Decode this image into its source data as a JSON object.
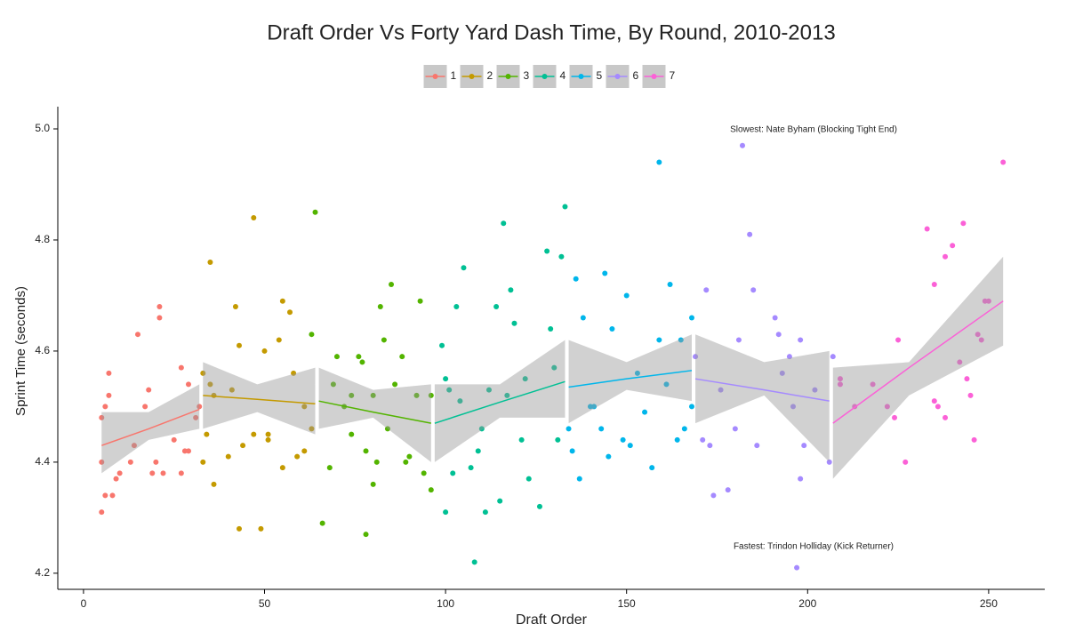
{
  "chart_data": {
    "type": "scatter",
    "title": "Draft Order Vs Forty Yard Dash Time, By Round, 2010-2013",
    "x_label": "Draft Order",
    "y_label": "Sprint Time (seconds)",
    "xlim": [
      -7.1,
      265.5
    ],
    "ylim": [
      4.171,
      5.04
    ],
    "xticks": [
      0,
      50,
      100,
      150,
      200,
      250
    ],
    "yticks": [
      4.2,
      4.4,
      4.6,
      4.8,
      {
        "value": 5,
        "label": "5.0"
      }
    ],
    "grid": false,
    "legend": "top",
    "annotations": [
      "Slowest: Nate Byham (Blocking Tight End)",
      "Fastest: Trindon Holliday (Kick Returner)"
    ],
    "series": [
      {
        "name": "1",
        "color": "#F8766D",
        "x": [
          5,
          5,
          5,
          6,
          6,
          7,
          7,
          8,
          9,
          10,
          13,
          14,
          15,
          17,
          18,
          19,
          20,
          21,
          21,
          22,
          25,
          27,
          27,
          28,
          29,
          29,
          31,
          32
        ],
        "values": [
          4.48,
          4.4,
          4.31,
          4.5,
          4.34,
          4.56,
          4.52,
          4.34,
          4.37,
          4.38,
          4.4,
          4.43,
          4.63,
          4.5,
          4.53,
          4.38,
          4.4,
          4.68,
          4.66,
          4.38,
          4.44,
          4.57,
          4.38,
          4.42,
          4.42,
          4.54,
          4.48,
          4.5
        ],
        "fit": {
          "x": [
            5,
            18,
            32
          ],
          "y": [
            4.43,
            4.46,
            4.495
          ],
          "lower": [
            4.38,
            4.44,
            4.46
          ],
          "upper": [
            4.49,
            4.49,
            4.54
          ]
        }
      },
      {
        "name": "2",
        "color": "#C49A00",
        "x": [
          33,
          33,
          34,
          35,
          35,
          36,
          36,
          40,
          41,
          42,
          43,
          43,
          44,
          47,
          47,
          49,
          50,
          51,
          51,
          54,
          55,
          55,
          57,
          58,
          59,
          61,
          61,
          63
        ],
        "values": [
          4.4,
          4.56,
          4.45,
          4.54,
          4.76,
          4.52,
          4.36,
          4.41,
          4.53,
          4.68,
          4.61,
          4.28,
          4.43,
          4.45,
          4.84,
          4.28,
          4.6,
          4.45,
          4.44,
          4.62,
          4.39,
          4.69,
          4.67,
          4.56,
          4.41,
          4.42,
          4.5,
          4.46
        ],
        "fit": {
          "x": [
            33,
            48,
            64
          ],
          "y": [
            4.52,
            4.513,
            4.505
          ],
          "lower": [
            4.46,
            4.49,
            4.45
          ],
          "upper": [
            4.58,
            4.54,
            4.57
          ]
        }
      },
      {
        "name": "3",
        "color": "#53B400",
        "x": [
          64,
          63,
          66,
          68,
          69,
          70,
          72,
          74,
          74,
          76,
          77,
          78,
          78,
          80,
          80,
          81,
          82,
          83,
          84,
          85,
          86,
          88,
          89,
          90,
          92,
          93,
          94,
          96,
          96
        ],
        "values": [
          4.85,
          4.63,
          4.29,
          4.39,
          4.54,
          4.59,
          4.5,
          4.52,
          4.45,
          4.59,
          4.58,
          4.27,
          4.42,
          4.52,
          4.36,
          4.4,
          4.68,
          4.62,
          4.46,
          4.72,
          4.54,
          4.59,
          4.4,
          4.41,
          4.52,
          4.69,
          4.38,
          4.52,
          4.35
        ],
        "fit": {
          "x": [
            65,
            80,
            96
          ],
          "y": [
            4.51,
            4.49,
            4.47
          ],
          "lower": [
            4.46,
            4.48,
            4.4
          ],
          "upper": [
            4.57,
            4.53,
            4.54
          ]
        }
      },
      {
        "name": "4",
        "color": "#00C094",
        "x": [
          99,
          100,
          100,
          101,
          102,
          103,
          104,
          105,
          107,
          108,
          109,
          110,
          111,
          112,
          114,
          115,
          116,
          117,
          118,
          119,
          121,
          122,
          123,
          126,
          128,
          129,
          130,
          131,
          132,
          133
        ],
        "values": [
          4.61,
          4.31,
          4.55,
          4.53,
          4.38,
          4.68,
          4.51,
          4.75,
          4.39,
          4.22,
          4.42,
          4.46,
          4.31,
          4.53,
          4.68,
          4.33,
          4.83,
          4.52,
          4.71,
          4.65,
          4.44,
          4.55,
          4.37,
          4.32,
          4.78,
          4.64,
          4.57,
          4.44,
          4.77,
          4.86
        ],
        "fit": {
          "x": [
            97,
            115,
            133
          ],
          "y": [
            4.47,
            4.508,
            4.545
          ],
          "lower": [
            4.4,
            4.48,
            4.48
          ],
          "upper": [
            4.54,
            4.54,
            4.62
          ]
        }
      },
      {
        "name": "5",
        "color": "#00B6EB",
        "x": [
          134,
          135,
          136,
          137,
          138,
          140,
          141,
          143,
          144,
          145,
          146,
          149,
          150,
          151,
          153,
          155,
          157,
          159,
          159,
          161,
          162,
          164,
          165,
          166,
          168,
          168
        ],
        "values": [
          4.46,
          4.42,
          4.73,
          4.37,
          4.66,
          4.5,
          4.5,
          4.46,
          4.74,
          4.41,
          4.64,
          4.44,
          4.7,
          4.43,
          4.56,
          4.49,
          4.39,
          4.62,
          4.94,
          4.54,
          4.72,
          4.44,
          4.62,
          4.46,
          4.66,
          4.5
        ],
        "fit": {
          "x": [
            134,
            150,
            168
          ],
          "y": [
            4.535,
            4.55,
            4.565
          ],
          "lower": [
            4.47,
            4.53,
            4.51
          ],
          "upper": [
            4.62,
            4.58,
            4.63
          ]
        }
      },
      {
        "name": "6",
        "color": "#A58AFF",
        "x": [
          169,
          171,
          172,
          173,
          174,
          176,
          178,
          180,
          181,
          182,
          184,
          185,
          186,
          191,
          192,
          193,
          195,
          196,
          198,
          198,
          197,
          199,
          202,
          206,
          207
        ],
        "values": [
          4.59,
          4.44,
          4.71,
          4.43,
          4.34,
          4.53,
          4.35,
          4.46,
          4.62,
          4.97,
          4.81,
          4.71,
          4.43,
          4.66,
          4.63,
          4.56,
          4.59,
          4.5,
          4.37,
          4.62,
          4.21,
          4.43,
          4.53,
          4.4,
          4.59
        ],
        "fit": {
          "x": [
            169,
            188,
            206
          ],
          "y": [
            4.55,
            4.53,
            4.51
          ],
          "lower": [
            4.47,
            4.52,
            4.4
          ],
          "upper": [
            4.63,
            4.58,
            4.6
          ]
        }
      },
      {
        "name": "7",
        "color": "#FB61D7",
        "x": [
          209,
          209,
          213,
          218,
          222,
          224,
          225,
          227,
          233,
          235,
          235,
          236,
          238,
          238,
          240,
          242,
          243,
          244,
          245,
          246,
          247,
          248,
          249,
          250,
          254
        ],
        "values": [
          4.55,
          4.54,
          4.5,
          4.54,
          4.5,
          4.48,
          4.62,
          4.4,
          4.82,
          4.72,
          4.51,
          4.5,
          4.77,
          4.48,
          4.79,
          4.58,
          4.83,
          4.55,
          4.52,
          4.44,
          4.63,
          4.62,
          4.69,
          4.69,
          4.94
        ],
        "fit": {
          "x": [
            207,
            228,
            254
          ],
          "y": [
            4.47,
            4.57,
            4.69
          ],
          "lower": [
            4.37,
            4.52,
            4.61
          ],
          "upper": [
            4.57,
            4.58,
            4.77
          ]
        }
      }
    ]
  }
}
